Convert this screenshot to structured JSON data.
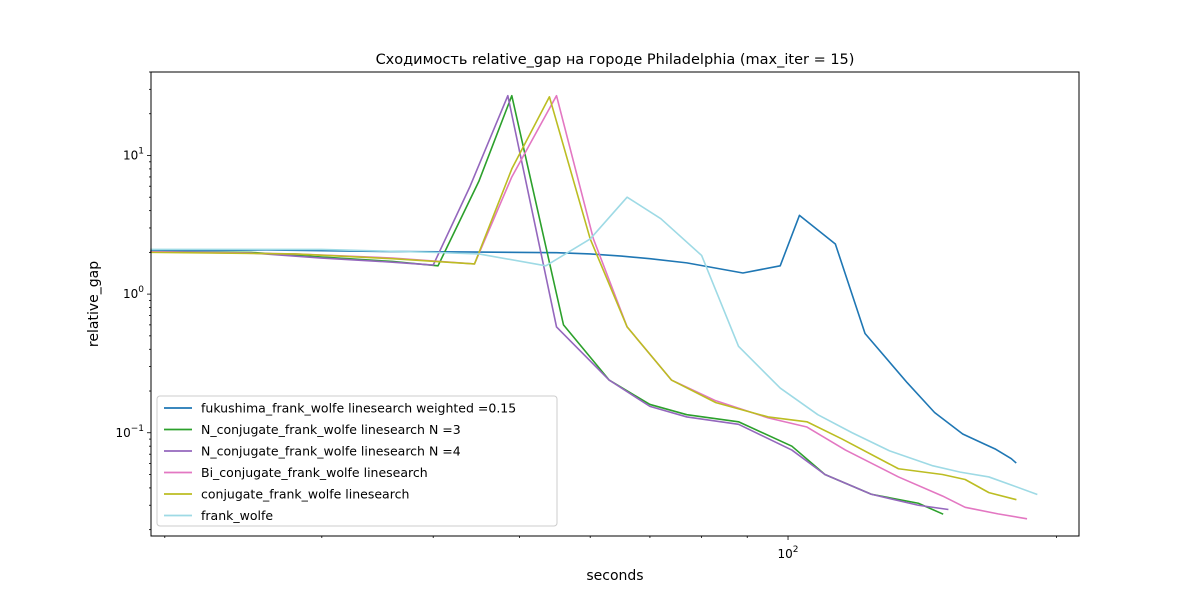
{
  "chart_data": {
    "type": "line",
    "title": "Сходимость relative_gap на городе Philadelphia  (max_iter = 15)",
    "xlabel": "seconds",
    "ylabel": "relative_gap",
    "xscale": "log",
    "yscale": "log",
    "xlim": [
      19.3,
      212
    ],
    "ylim": [
      0.018,
      40
    ],
    "x_major_ticks": [
      {
        "value": 100,
        "label": "10^2"
      }
    ],
    "x_minor_ticks": [
      20,
      30,
      40,
      50,
      60,
      70,
      80,
      90,
      200
    ],
    "y_major_ticks": [
      {
        "value": 0.1,
        "label": "10^−1"
      },
      {
        "value": 1,
        "label": "10^0"
      },
      {
        "value": 10,
        "label": "10^1"
      }
    ],
    "grid": false,
    "legend_position": "lower-left",
    "series": [
      {
        "name": "fukushima_frank_wolfe linesearch weighted =0.15",
        "color": "#1f77b4",
        "x": [
          19.3,
          26,
          35,
          45,
          55,
          60,
          65,
          70,
          77,
          89,
          98,
          103,
          113,
          122,
          136,
          146,
          157,
          166,
          171,
          178,
          180
        ],
        "y": [
          2.05,
          2.08,
          2.03,
          2.01,
          1.99,
          1.95,
          1.88,
          1.8,
          1.68,
          1.42,
          1.6,
          3.7,
          2.3,
          0.52,
          0.23,
          0.14,
          0.098,
          0.083,
          0.076,
          0.065,
          0.061
        ]
      },
      {
        "name": "N_conjugate_frank_wolfe linesearch N =3",
        "color": "#2ca02c",
        "x": [
          19.3,
          25,
          30,
          36,
          40.5,
          45,
          49,
          56,
          63,
          70,
          77,
          88,
          101,
          110,
          124,
          140,
          149
        ],
        "y": [
          2.02,
          2.0,
          1.85,
          1.72,
          1.6,
          6.5,
          27,
          0.6,
          0.24,
          0.16,
          0.135,
          0.12,
          0.08,
          0.05,
          0.036,
          0.031,
          0.026
        ]
      },
      {
        "name": "N_conjugate_frank_wolfe linesearch N =4",
        "color": "#9467bd",
        "x": [
          19.3,
          25,
          30,
          36,
          40,
          44,
          48.5,
          55,
          63,
          70,
          77,
          88,
          101,
          110,
          124,
          140,
          151
        ],
        "y": [
          2.02,
          1.98,
          1.82,
          1.7,
          1.62,
          6.0,
          27,
          0.58,
          0.24,
          0.155,
          0.13,
          0.115,
          0.075,
          0.05,
          0.036,
          0.03,
          0.028
        ]
      },
      {
        "name": "Bi_conjugate_frank_wolfe linesearch",
        "color": "#e377c2",
        "x": [
          19.3,
          28,
          36,
          44.5,
          49,
          55,
          60.5,
          66,
          74,
          83,
          95,
          105,
          116,
          133,
          149,
          158,
          172,
          185
        ],
        "y": [
          2.02,
          1.95,
          1.82,
          1.65,
          7.0,
          27,
          2.5,
          0.58,
          0.24,
          0.17,
          0.128,
          0.11,
          0.075,
          0.048,
          0.035,
          0.029,
          0.026,
          0.024
        ]
      },
      {
        "name": "conjugate_frank_wolfe linesearch",
        "color": "#bcbd22",
        "x": [
          19.3,
          28,
          36,
          44.5,
          49,
          54,
          60,
          66,
          74,
          83,
          95,
          105,
          115,
          133,
          149,
          158,
          168,
          180
        ],
        "y": [
          2.0,
          1.95,
          1.8,
          1.65,
          8.0,
          26.5,
          2.5,
          0.58,
          0.24,
          0.165,
          0.13,
          0.12,
          0.09,
          0.055,
          0.05,
          0.046,
          0.037,
          0.033
        ]
      },
      {
        "name": "frank_wolfe",
        "color": "#9edae5",
        "x": [
          19.3,
          30,
          40,
          45,
          53.5,
          60,
          66,
          72,
          80,
          88,
          98,
          108,
          118,
          130,
          145,
          156,
          168,
          178,
          190
        ],
        "y": [
          2.1,
          2.1,
          2.0,
          1.95,
          1.6,
          2.5,
          5.0,
          3.5,
          1.9,
          0.42,
          0.21,
          0.135,
          0.1,
          0.074,
          0.058,
          0.052,
          0.048,
          0.042,
          0.036
        ]
      }
    ]
  }
}
